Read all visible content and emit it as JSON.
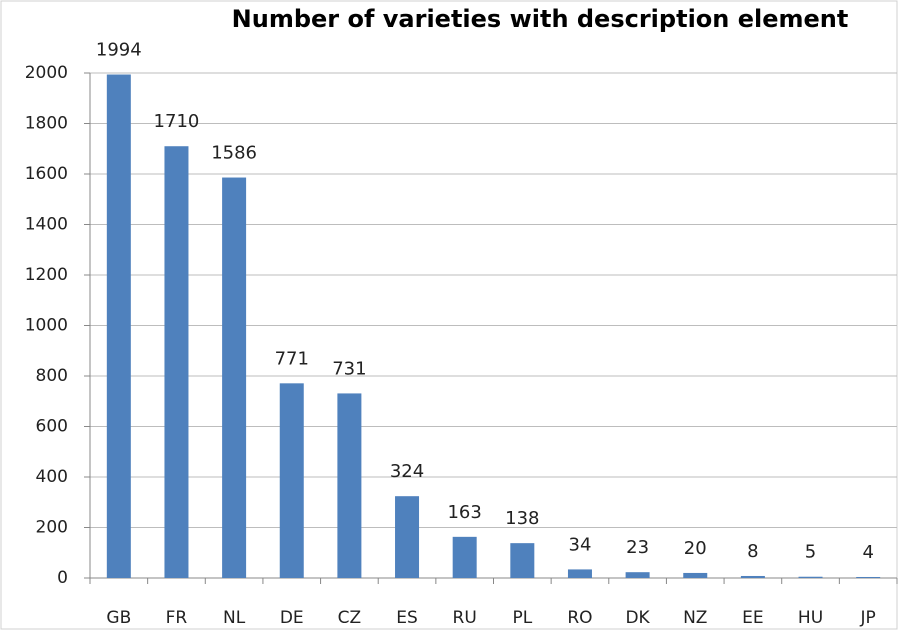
{
  "chart_data": {
    "type": "bar",
    "title": "Number of varieties with description element",
    "categories": [
      "GB",
      "FR",
      "NL",
      "DE",
      "CZ",
      "ES",
      "RU",
      "PL",
      "RO",
      "DK",
      "NZ",
      "EE",
      "HU",
      "JP"
    ],
    "values": [
      1994,
      1710,
      1586,
      771,
      731,
      324,
      163,
      138,
      34,
      23,
      20,
      8,
      5,
      4
    ],
    "color": "#4f81bd",
    "ylim": [
      0,
      2000
    ],
    "yticks": [
      0,
      200,
      400,
      600,
      800,
      1000,
      1200,
      1400,
      1600,
      1800,
      2000
    ],
    "grid": true
  }
}
